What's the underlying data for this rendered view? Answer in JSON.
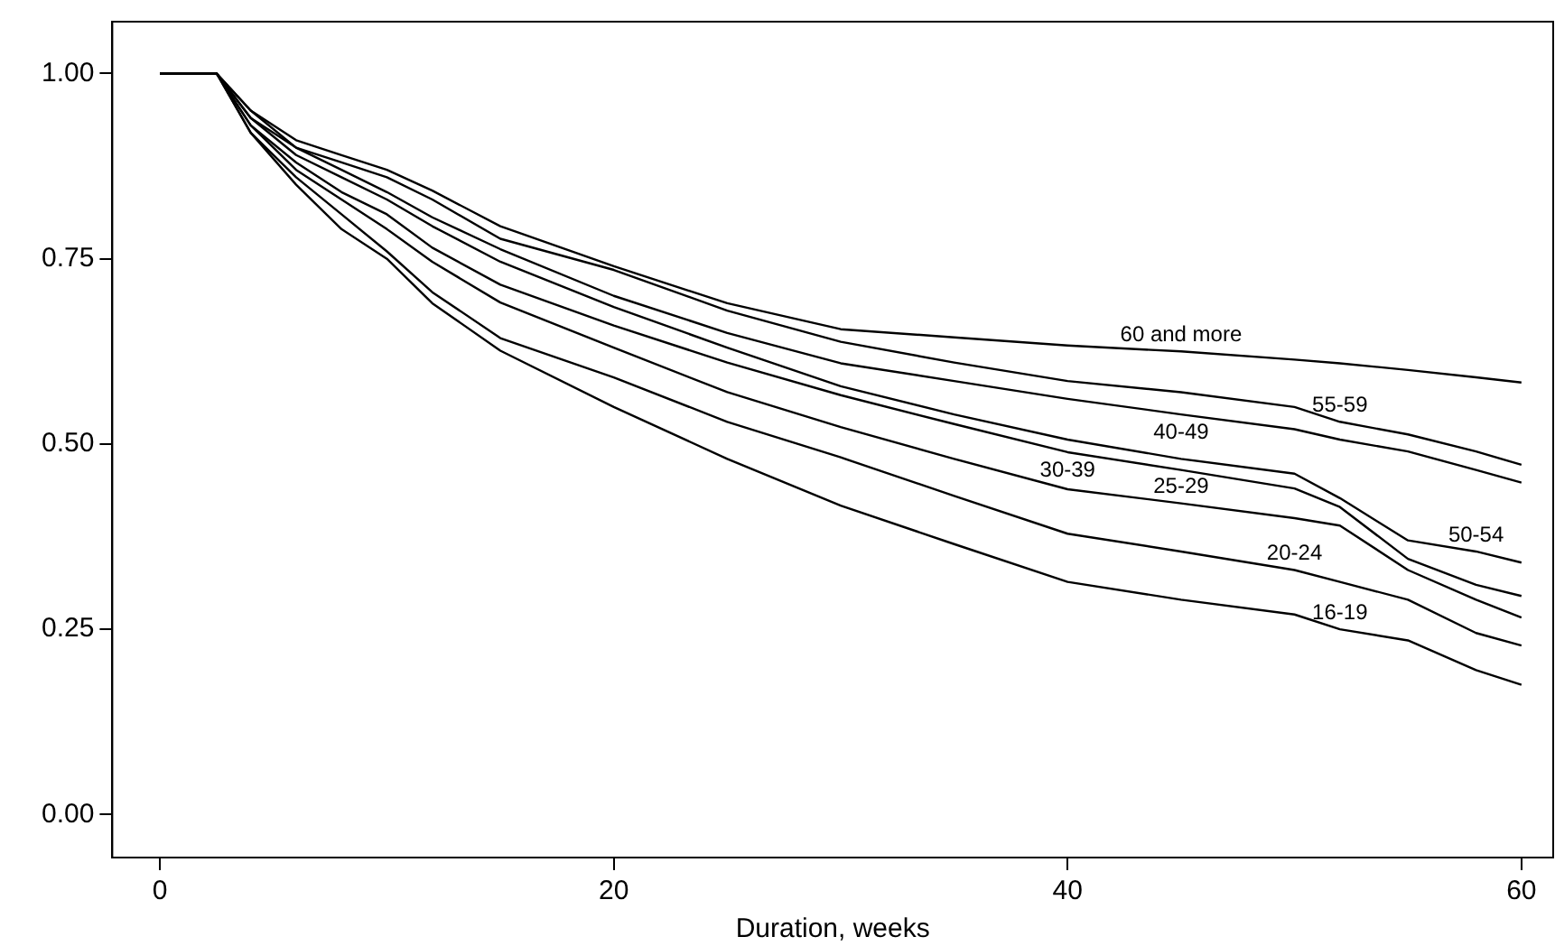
{
  "chart_data": {
    "type": "line",
    "xlabel": "Duration, weeks",
    "x": [
      0,
      2.5,
      4,
      6,
      8,
      10,
      12,
      15,
      20,
      25,
      30,
      35,
      40,
      45,
      50,
      52,
      55,
      58,
      60
    ],
    "series": [
      {
        "name": "60 and more",
        "color": "#000000",
        "values": [
          1,
          1,
          0.95,
          0.91,
          0.89,
          0.87,
          0.842,
          0.794,
          0.74,
          0.69,
          0.655,
          0.644,
          0.633,
          0.625,
          0.614,
          0.609,
          0.6,
          0.59,
          0.583
        ]
      },
      {
        "name": "55-59",
        "color": "#000000",
        "values": [
          1,
          1,
          0.95,
          0.9,
          0.88,
          0.86,
          0.83,
          0.777,
          0.735,
          0.68,
          0.638,
          0.61,
          0.585,
          0.57,
          0.55,
          0.53,
          0.513,
          0.49,
          0.472
        ]
      },
      {
        "name": "40-49",
        "color": "#000000",
        "values": [
          1,
          1,
          0.94,
          0.9,
          0.87,
          0.84,
          0.806,
          0.763,
          0.7,
          0.65,
          0.609,
          0.585,
          0.561,
          0.54,
          0.52,
          0.506,
          0.49,
          0.465,
          0.448
        ]
      },
      {
        "name": "50-54",
        "color": "#000000",
        "values": [
          1,
          1,
          0.94,
          0.89,
          0.86,
          0.83,
          0.794,
          0.746,
          0.685,
          0.63,
          0.578,
          0.54,
          0.506,
          0.48,
          0.46,
          0.427,
          0.37,
          0.355,
          0.34
        ]
      },
      {
        "name": "30-39",
        "color": "#000000",
        "values": [
          1,
          1,
          0.93,
          0.88,
          0.84,
          0.81,
          0.765,
          0.715,
          0.66,
          0.61,
          0.566,
          0.527,
          0.489,
          0.465,
          0.44,
          0.415,
          0.345,
          0.31,
          0.295
        ]
      },
      {
        "name": "25-29",
        "color": "#000000",
        "values": [
          1,
          1,
          0.93,
          0.87,
          0.83,
          0.79,
          0.746,
          0.691,
          0.63,
          0.57,
          0.523,
          0.48,
          0.439,
          0.42,
          0.4,
          0.39,
          0.33,
          0.29,
          0.266
        ]
      },
      {
        "name": "20-24",
        "color": "#000000",
        "values": [
          1,
          1,
          0.92,
          0.86,
          0.81,
          0.76,
          0.705,
          0.643,
          0.59,
          0.53,
          0.482,
          0.43,
          0.379,
          0.355,
          0.33,
          0.314,
          0.29,
          0.245,
          0.228
        ]
      },
      {
        "name": "16-19",
        "color": "#000000",
        "values": [
          1,
          1,
          0.92,
          0.85,
          0.79,
          0.75,
          0.69,
          0.626,
          0.55,
          0.48,
          0.417,
          0.365,
          0.314,
          0.29,
          0.27,
          0.25,
          0.235,
          0.195,
          0.175
        ]
      }
    ],
    "xlim": [
      -2.1,
      61.4
    ],
    "xticks": [
      0,
      20,
      40,
      60
    ],
    "ylim": [
      -0.058,
      1.07
    ],
    "yticks": [
      {
        "value": 0,
        "label": "0.00"
      },
      {
        "value": 0.25,
        "label": "0.25"
      },
      {
        "value": 0.5,
        "label": "0.50"
      },
      {
        "value": 0.75,
        "label": "0.75"
      },
      {
        "value": 1,
        "label": "1.00"
      }
    ]
  }
}
